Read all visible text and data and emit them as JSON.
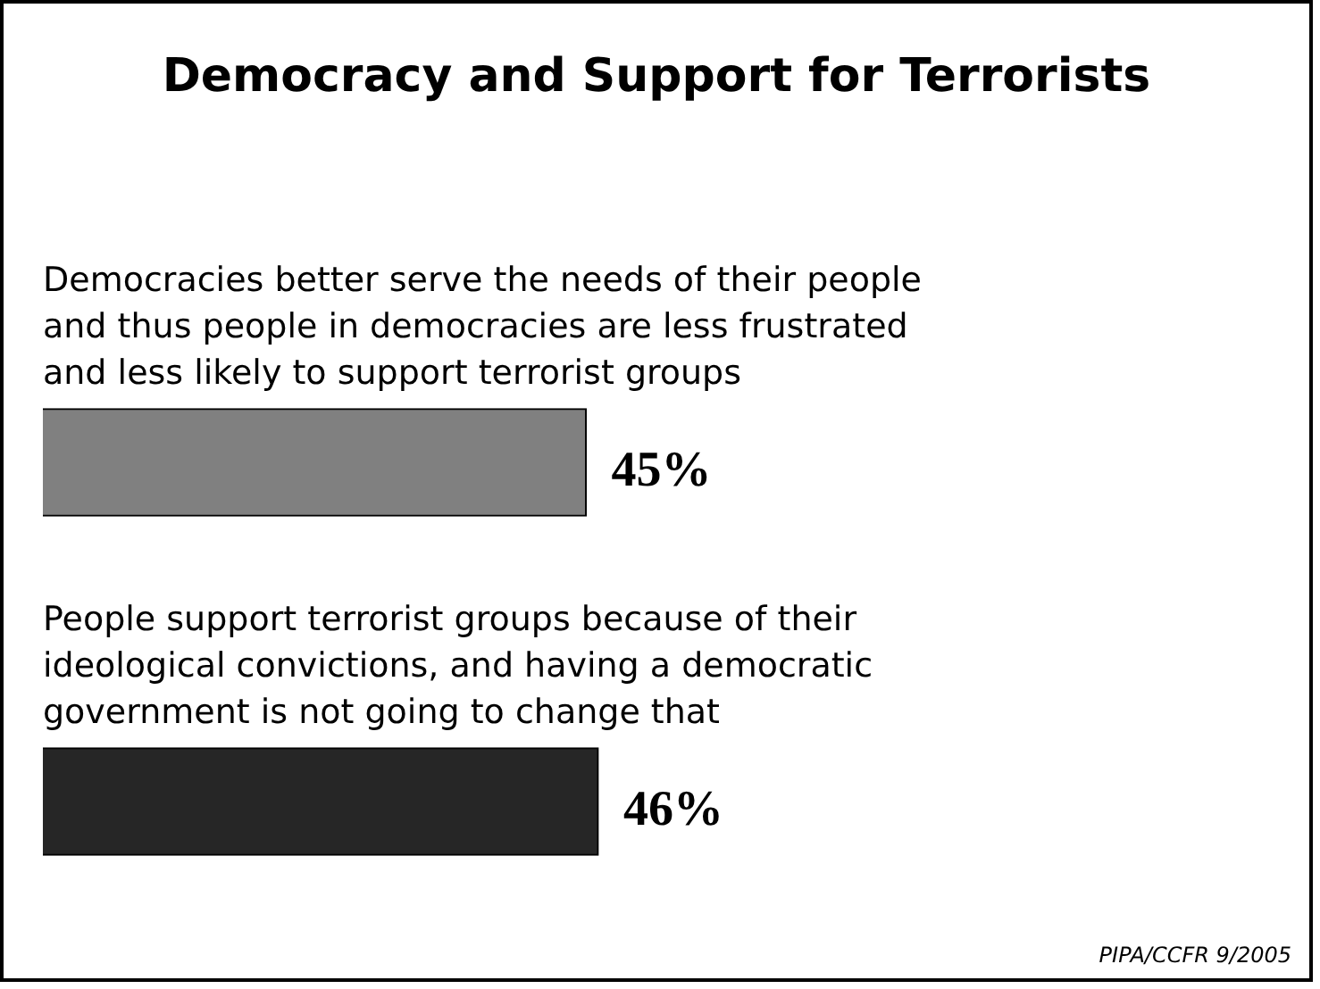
{
  "chart_data": {
    "type": "bar",
    "orientation": "horizontal",
    "title": "Democracy and Support for Terrorists",
    "categories": [
      "Democracies better serve the needs of their people and thus people in democracies are less frustrated and less likely to support terrorist groups",
      "People support terrorist groups because of their ideological convictions, and having a democratic government is not going to change that"
    ],
    "values": [
      45,
      46
    ],
    "colors": [
      "#808080",
      "#262626"
    ],
    "value_labels": [
      "45%",
      "46%"
    ],
    "legend": false,
    "annotations": [
      "PIPA/CCFR 9/2005"
    ]
  }
}
